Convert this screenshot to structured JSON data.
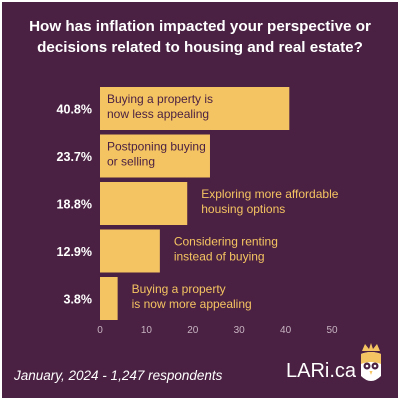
{
  "title": "How has inflation impacted your perspective or decisions related to housing and real estate?",
  "footer": "January, 2024 - 1,247 respondents",
  "brand": "LARi.ca",
  "colors": {
    "background": "#4a2142",
    "bar": "#f5c462",
    "label_on_bar": "#4a2142",
    "label_off_bar": "#f5c462",
    "text": "#ffffff",
    "axis_text": "#c7b3c2",
    "gridline": "#6a3f60"
  },
  "chart_data": {
    "type": "bar",
    "orientation": "horizontal",
    "title": "How has inflation impacted your perspective or decisions related to housing and real estate?",
    "categories": [
      "Buying a property is now less appealing",
      "Postponing buying or selling",
      "Exploring more affordable housing options",
      "Considering renting instead of buying",
      "Buying a property is now more appealing"
    ],
    "category_lines": [
      [
        "Buying a property is",
        "now less appealing"
      ],
      [
        "Postponing buying",
        "or selling"
      ],
      [
        "Exploring more affordable",
        "housing options"
      ],
      [
        "Considering renting",
        "instead of buying"
      ],
      [
        "Buying a property",
        "is now more appealing"
      ]
    ],
    "values": [
      40.8,
      23.7,
      18.8,
      12.9,
      3.8
    ],
    "value_labels": [
      "40.8%",
      "23.7%",
      "18.8%",
      "12.9%",
      "3.8%"
    ],
    "xlim": [
      0,
      50
    ],
    "xticks": [
      0,
      10,
      20,
      30,
      40,
      50
    ],
    "xlabel": "",
    "ylabel": "",
    "grid": false,
    "legend": "none"
  }
}
